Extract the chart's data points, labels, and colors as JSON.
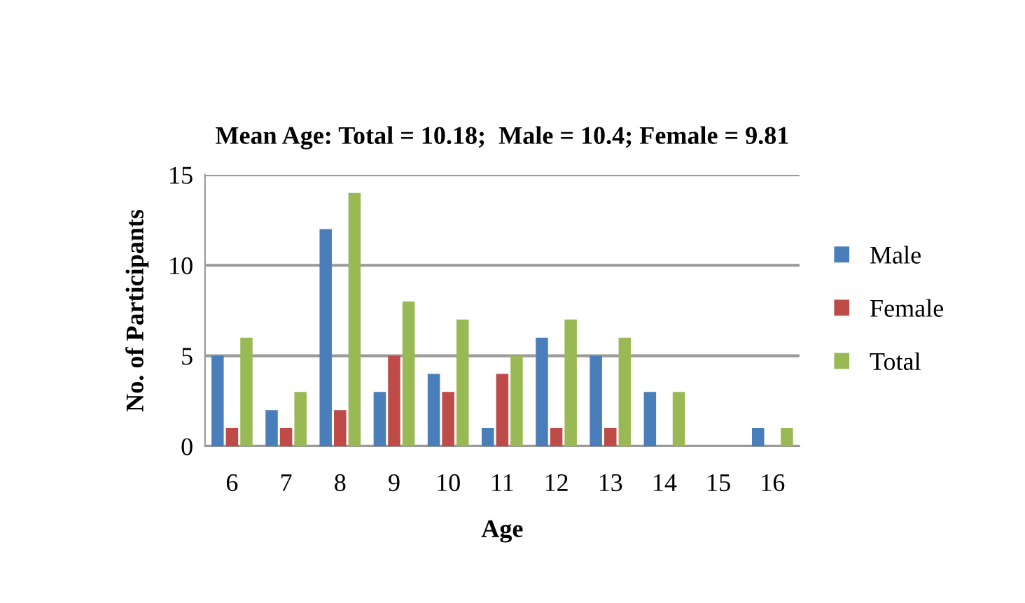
{
  "chart_data": {
    "type": "bar",
    "title": "Mean Age: Total = 10.18;  Male = 10.4; Female = 9.81",
    "xlabel": "Age",
    "ylabel": "No. of Participants",
    "categories": [
      "6",
      "7",
      "8",
      "9",
      "10",
      "11",
      "12",
      "13",
      "14",
      "15",
      "16"
    ],
    "series": [
      {
        "name": "Male",
        "color": "#4a7ebb",
        "values": [
          5,
          2,
          12,
          3,
          4,
          1,
          6,
          5,
          3,
          0,
          1
        ]
      },
      {
        "name": "Female",
        "color": "#be4b48",
        "values": [
          1,
          1,
          2,
          5,
          3,
          4,
          1,
          1,
          0,
          0,
          0
        ]
      },
      {
        "name": "Total",
        "color": "#98b954",
        "values": [
          6,
          3,
          14,
          8,
          7,
          5,
          7,
          6,
          3,
          0,
          1
        ]
      }
    ],
    "ylim": [
      0,
      15
    ],
    "yticks": [
      0,
      5,
      10,
      15
    ],
    "grid": "y",
    "legend": "right"
  }
}
